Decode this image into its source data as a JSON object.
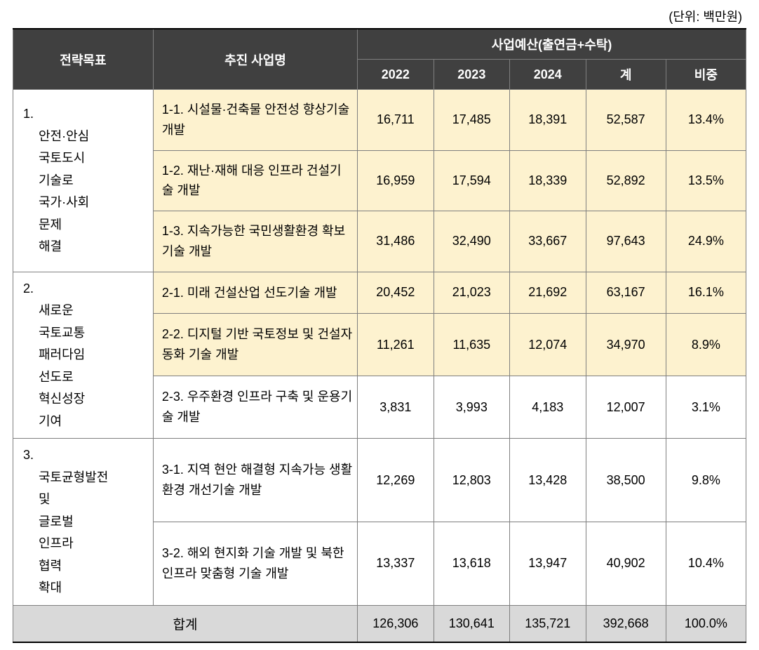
{
  "unit_label": "(단위: 백만원)",
  "header": {
    "goal": "전략목표",
    "project": "추진 사업명",
    "budget_group": "사업예산(출연금+수탁)",
    "y2022": "2022",
    "y2023": "2023",
    "y2024": "2024",
    "sum": "계",
    "ratio": "비중"
  },
  "goals": [
    {
      "num": "1.",
      "text": "안전·안심 국토도시 기술로 국가·사회 문제 해결",
      "row_count": 3
    },
    {
      "num": "2.",
      "text": "새로운 국토교통 패러다임 선도로 혁신성장 기여",
      "row_count": 3
    },
    {
      "num": "3.",
      "text": "국토균형발전 및 글로벌 인프라 협력 확대",
      "row_count": 2
    }
  ],
  "rows": [
    {
      "goal_index": 0,
      "highlight": true,
      "project": "1-1. 시설물·건축물 안전성 향상기술 개발",
      "y2022": "16,711",
      "y2023": "17,485",
      "y2024": "18,391",
      "sum": "52,587",
      "ratio": "13.4%"
    },
    {
      "goal_index": 0,
      "highlight": true,
      "project": "1-2. 재난·재해 대응 인프라 건설기술 개발",
      "y2022": "16,959",
      "y2023": "17,594",
      "y2024": "18,339",
      "sum": "52,892",
      "ratio": "13.5%"
    },
    {
      "goal_index": 0,
      "highlight": true,
      "project": "1-3. 지속가능한 국민생활환경 확보기술 개발",
      "y2022": "31,486",
      "y2023": "32,490",
      "y2024": "33,667",
      "sum": "97,643",
      "ratio": "24.9%"
    },
    {
      "goal_index": 1,
      "highlight": true,
      "project": "2-1. 미래 건설산업 선도기술 개발",
      "y2022": "20,452",
      "y2023": "21,023",
      "y2024": "21,692",
      "sum": "63,167",
      "ratio": "16.1%"
    },
    {
      "goal_index": 1,
      "highlight": true,
      "project": "2-2. 디지털 기반 국토정보 및 건설자동화 기술 개발",
      "y2022": "11,261",
      "y2023": "11,635",
      "y2024": "12,074",
      "sum": "34,970",
      "ratio": "8.9%"
    },
    {
      "goal_index": 1,
      "highlight": false,
      "project": "2-3. 우주환경 인프라 구축 및 운용기술 개발",
      "y2022": "3,831",
      "y2023": "3,993",
      "y2024": "4,183",
      "sum": "12,007",
      "ratio": "3.1%"
    },
    {
      "goal_index": 2,
      "highlight": false,
      "project": "3-1. 지역 현안 해결형 지속가능 생활환경 개선기술 개발",
      "y2022": "12,269",
      "y2023": "12,803",
      "y2024": "13,428",
      "sum": "38,500",
      "ratio": "9.8%"
    },
    {
      "goal_index": 2,
      "highlight": false,
      "project": "3-2. 해외 현지화 기술 개발 및 북한 인프라 맞춤형 기술 개발",
      "y2022": "13,337",
      "y2023": "13,618",
      "y2024": "13,947",
      "sum": "40,902",
      "ratio": "10.4%"
    }
  ],
  "total": {
    "label": "합계",
    "y2022": "126,306",
    "y2023": "130,641",
    "y2024": "135,721",
    "sum": "392,668",
    "ratio": "100.0%"
  },
  "style": {
    "header_bg": "#404040",
    "header_fg": "#ffffff",
    "highlight_bg": "#fdf2cf",
    "plain_bg": "#ffffff",
    "total_bg": "#d9d9d9",
    "border_color": "#7f7f7f",
    "font_size_pt": 18
  }
}
